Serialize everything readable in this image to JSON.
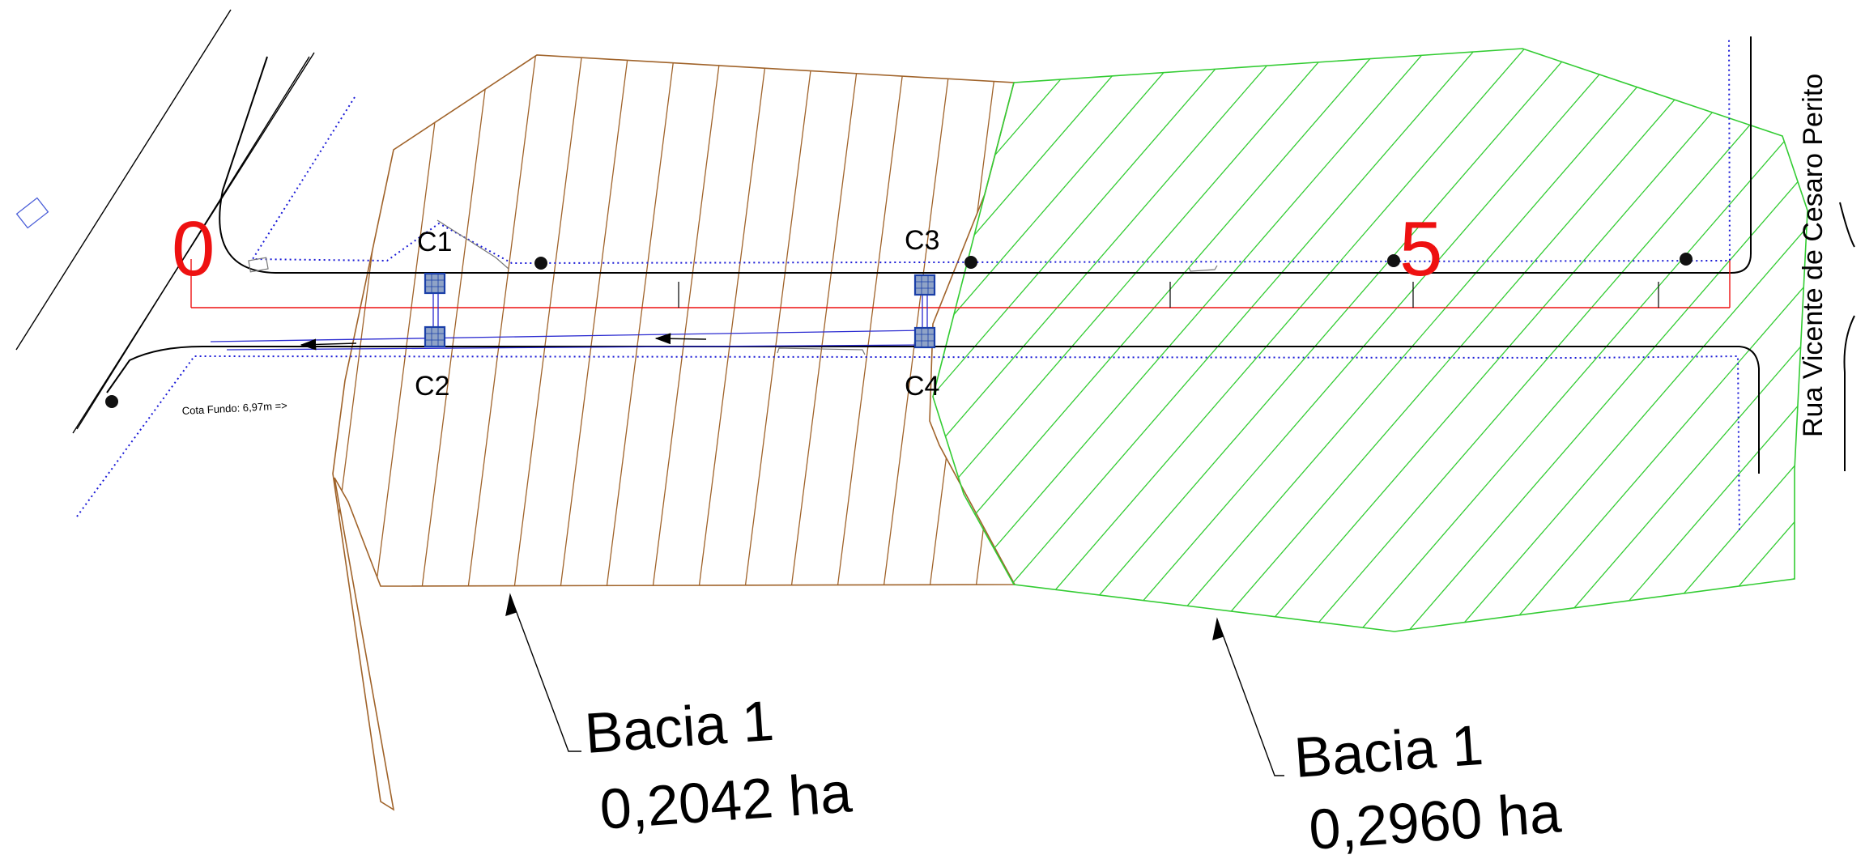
{
  "colors": {
    "basin_brown": "#a0632a",
    "basin_green": "#33cc33",
    "road": "#000000",
    "pipe_blue": "#1a1ad6",
    "station_red": "#ee1111",
    "box_fill": "#8fa3c7",
    "box_stroke": "#1a3fa8"
  },
  "stations": {
    "start": "0",
    "end": "5"
  },
  "boxes": {
    "c1": "C1",
    "c2": "C2",
    "c3": "C3",
    "c4": "C4"
  },
  "street_name": "Rua Vicente de Cesaro Perito",
  "note_bottom": "Cota Fundo: 6,97m =>",
  "basin_left": {
    "name": "Bacia 1",
    "area": "0,2042 ha"
  },
  "basin_right": {
    "name": "Bacia 1",
    "area": "0,2960 ha"
  }
}
